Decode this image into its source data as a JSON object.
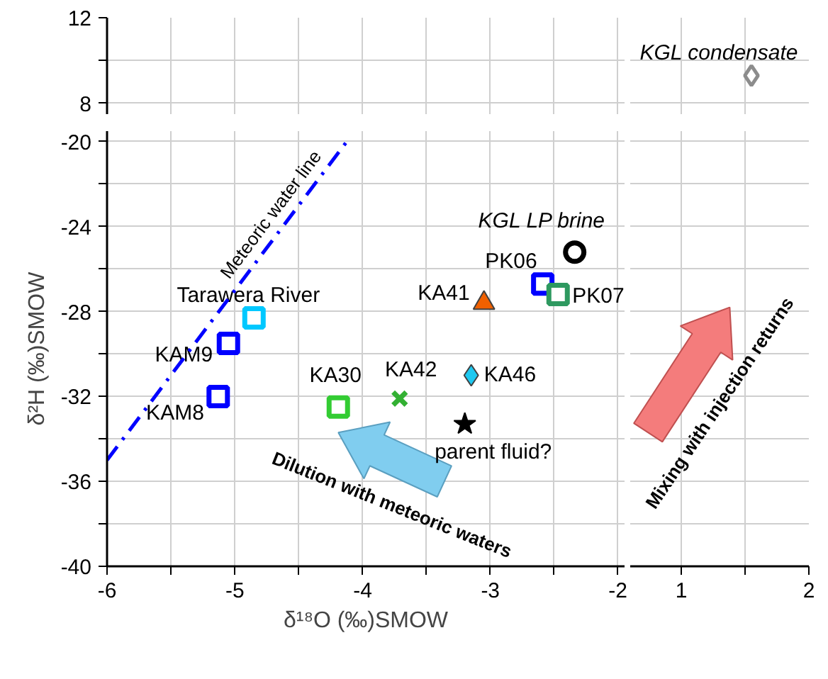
{
  "chart_data": [
    {
      "type": "scatter",
      "xlim": [
        -6,
        -1.95
      ],
      "ylim": [
        7.5,
        12
      ],
      "xticks": [
        -6,
        {
          "value": -5.5,
          "label": null
        },
        -5,
        {
          "value": -4.5,
          "label": null
        },
        -4,
        {
          "value": -3.5,
          "label": null
        },
        -3,
        {
          "value": -2.5,
          "label": null
        },
        -2
      ],
      "yticks": [
        8,
        {
          "value": 10,
          "label": null
        },
        12
      ],
      "grid": true,
      "tick_labels": "y"
    },
    {
      "type": "scatter",
      "xlim": [
        0.6,
        2
      ],
      "ylim": [
        7.5,
        12
      ],
      "xticks": [
        1,
        {
          "value": 1.5,
          "label": null
        },
        2
      ],
      "yticks": [
        8,
        {
          "value": 10,
          "label": null
        },
        12
      ],
      "grid": true,
      "tick_labels": false,
      "series": [
        {
          "name": "KGL condensate",
          "color": "#8c8c8c",
          "marker": "diamond",
          "x": [
            1.55
          ],
          "values": [
            9.3
          ]
        }
      ]
    },
    {
      "type": "scatter",
      "xlabel": "δ¹⁸O (‰)SMOW",
      "ylabel": "δ²H (‰)SMOW",
      "xlim": [
        -6,
        -1.95
      ],
      "ylim": [
        -40,
        -19.5
      ],
      "xticks": [
        -6,
        {
          "value": -5.5,
          "label": null
        },
        -5,
        {
          "value": -4.5,
          "label": null
        },
        -4,
        {
          "value": -3.5,
          "label": null
        },
        -3,
        {
          "value": -2.5,
          "label": null
        },
        -2
      ],
      "yticks": [
        -40,
        {
          "value": -38,
          "label": null
        },
        -36,
        {
          "value": -34,
          "label": null
        },
        -32,
        {
          "value": -30,
          "label": null
        },
        -28,
        {
          "value": -26,
          "label": null
        },
        -24,
        {
          "value": -22,
          "label": null
        },
        -20
      ],
      "grid": true,
      "annotations": [
        "Dilution with meteoric waters"
      ],
      "series": [
        {
          "name": "KAM8",
          "color": "#0000ff",
          "marker": "square",
          "x": [
            -5.13
          ],
          "values": [
            -32.0
          ]
        },
        {
          "name": "KAM9",
          "color": "#0000ff",
          "marker": "square",
          "x": [
            -5.05
          ],
          "values": [
            -29.5
          ]
        },
        {
          "name": "Tarawera River",
          "color": "#00c8ff",
          "marker": "square",
          "x": [
            -4.85
          ],
          "values": [
            -28.3
          ]
        },
        {
          "name": "KA30",
          "color": "#33cc33",
          "marker": "square",
          "x": [
            -4.19
          ],
          "values": [
            -32.5
          ]
        },
        {
          "name": "KA42",
          "color": "#33b033",
          "marker": "x",
          "x": [
            -3.71
          ],
          "values": [
            -32.1
          ]
        },
        {
          "name": "KA46",
          "color": "#1ec8f0",
          "marker": "diamond",
          "x": [
            -3.15
          ],
          "values": [
            -31.0
          ]
        },
        {
          "name": "parent fluid?",
          "color": "#000000",
          "marker": "star",
          "x": [
            -3.2
          ],
          "values": [
            -33.3
          ]
        },
        {
          "name": "KA41",
          "color": "#f06000",
          "marker": "triangle",
          "x": [
            -3.05
          ],
          "values": [
            -27.6
          ]
        },
        {
          "name": "PK06",
          "color": "#0000ff",
          "marker": "square",
          "x": [
            -2.59
          ],
          "values": [
            -26.7
          ]
        },
        {
          "name": "PK07",
          "color": "#2e9960",
          "marker": "square",
          "x": [
            -2.47
          ],
          "values": [
            -27.2
          ]
        },
        {
          "name": "KGL LP brine",
          "color": "#000000",
          "marker": "circle",
          "x": [
            -2.34
          ],
          "values": [
            -25.2
          ]
        },
        {
          "name": "Meteoric water line",
          "type": "line",
          "color": "#0000ff",
          "line_style": "dashdot",
          "x": [
            -6,
            -4.125
          ],
          "values": [
            -35,
            -20
          ]
        }
      ]
    },
    {
      "type": "scatter",
      "xlim": [
        0.6,
        2
      ],
      "ylim": [
        -40,
        -19.5
      ],
      "xticks": [
        1,
        {
          "value": 1.5,
          "label": null
        },
        2
      ],
      "yticks": [
        -40,
        {
          "value": -38,
          "label": null
        },
        -36,
        {
          "value": -34,
          "label": null
        },
        -32,
        {
          "value": -30,
          "label": null
        },
        -28,
        {
          "value": -26,
          "label": null
        },
        -24,
        {
          "value": -22,
          "label": null
        },
        -20
      ],
      "grid": true,
      "tick_labels": "x",
      "annotations": [
        "Mixing with injection returns"
      ]
    }
  ]
}
